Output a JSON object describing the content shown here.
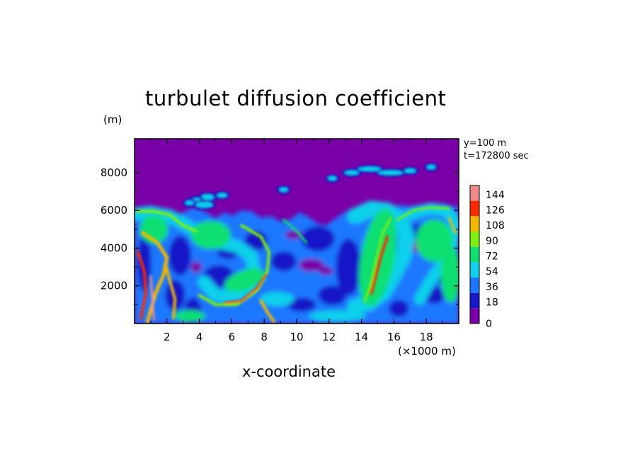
{
  "chart_data": {
    "type": "heatmap",
    "title": "turbulet diffusion coefficient",
    "xlabel": "x-coordinate",
    "x_unit": "(×1000 m)",
    "y_unit": "(m)",
    "xlim": [
      0,
      20
    ],
    "ylim": [
      0,
      9800
    ],
    "x_ticks": [
      2,
      4,
      6,
      8,
      10,
      12,
      14,
      16,
      18
    ],
    "y_ticks": [
      2000,
      4000,
      6000,
      8000
    ],
    "annotations": [
      "y=100 m",
      "t=172800 sec"
    ],
    "colorbar": {
      "ticks": [
        0,
        18,
        36,
        54,
        72,
        90,
        108,
        126,
        144
      ],
      "range": [
        0,
        144
      ],
      "colors": [
        "#7a00a8",
        "#1818c8",
        "#1e78ff",
        "#10d0ea",
        "#10e070",
        "#80ee10",
        "#f2b800",
        "#ff2a00",
        "#f08a8a"
      ]
    },
    "field_summary": {
      "background_value": 0,
      "turbulent_layer_top_m": 6200,
      "max_value": 144
    }
  }
}
